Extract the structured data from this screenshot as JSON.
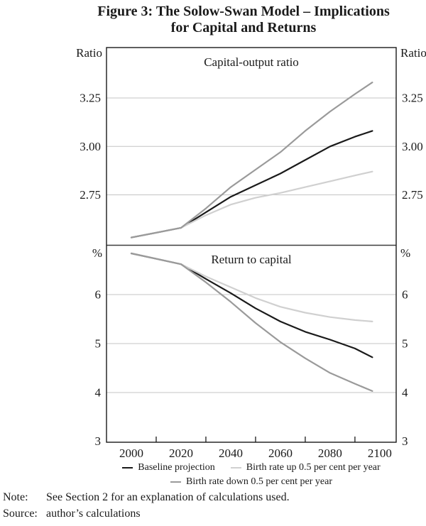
{
  "title": {
    "line1": "Figure 3: The Solow-Swan Model – Implications",
    "line2": "for Capital and Returns"
  },
  "colors": {
    "baseline": "#1a1a1a",
    "up": "#d0d0d0",
    "down": "#9a9a9a",
    "gridline": "#c4c4c4",
    "axis": "#1a1a1a",
    "divider": "#3d3d3d"
  },
  "x_axis": {
    "xlim": [
      1990,
      2106.6
    ],
    "label_years": [
      2000,
      2020,
      2040,
      2060,
      2080,
      2100
    ],
    "tick_labels": [
      "2000",
      "2020",
      "2040",
      "2060",
      "2080",
      "2100"
    ],
    "minor_tick_years": [
      2010,
      2030,
      2050,
      2070,
      2090
    ]
  },
  "chart_data": [
    {
      "type": "line",
      "title": "Capital-output ratio",
      "ylabel_left": "Ratio",
      "ylabel_right": "Ratio",
      "ylim": [
        2.49,
        3.51
      ],
      "yticks": [
        3.25,
        3.0,
        2.75
      ],
      "ytick_labels": [
        "3.25",
        "3.00",
        "2.75"
      ],
      "baseline_tick": null,
      "x": [
        2000,
        2010,
        2020,
        2030,
        2040,
        2050,
        2060,
        2070,
        2080,
        2090,
        2097
      ],
      "series": [
        {
          "key": "baseline",
          "name": "Baseline projection",
          "values": [
            2.53,
            2.555,
            2.58,
            2.66,
            2.74,
            2.8,
            2.86,
            2.93,
            3.0,
            3.05,
            3.08
          ]
        },
        {
          "key": "up",
          "name": "Birth rate up 0.5 per cent per year",
          "values": [
            2.53,
            2.555,
            2.58,
            2.645,
            2.7,
            2.735,
            2.76,
            2.79,
            2.82,
            2.85,
            2.87
          ]
        },
        {
          "key": "down",
          "name": "Birth rate down 0.5 per cent per year",
          "values": [
            2.53,
            2.555,
            2.58,
            2.68,
            2.79,
            2.88,
            2.97,
            3.08,
            3.18,
            3.27,
            3.33
          ]
        }
      ]
    },
    {
      "type": "line",
      "title": "Return to capital",
      "ylabel_left": "%",
      "ylabel_right": "%",
      "ylim": [
        3.0,
        7.007
      ],
      "yticks": [
        6,
        5,
        4
      ],
      "ytick_labels": [
        "6",
        "5",
        "4"
      ],
      "baseline_tick": "3",
      "x": [
        2000,
        2010,
        2020,
        2030,
        2040,
        2050,
        2060,
        2070,
        2080,
        2090,
        2097
      ],
      "series": [
        {
          "key": "baseline",
          "name": "Baseline projection",
          "values": [
            6.84,
            6.73,
            6.62,
            6.32,
            6.03,
            5.72,
            5.45,
            5.24,
            5.08,
            4.9,
            4.72
          ]
        },
        {
          "key": "up",
          "name": "Birth rate up 0.5 per cent per year",
          "values": [
            6.84,
            6.73,
            6.62,
            6.37,
            6.15,
            5.93,
            5.75,
            5.63,
            5.54,
            5.48,
            5.45
          ]
        },
        {
          "key": "down",
          "name": "Birth rate down 0.5 per cent per year",
          "values": [
            6.84,
            6.73,
            6.62,
            6.25,
            5.85,
            5.42,
            5.03,
            4.7,
            4.4,
            4.18,
            4.03
          ]
        }
      ]
    }
  ],
  "legend": {
    "items": [
      {
        "key": "baseline",
        "label": "Baseline projection"
      },
      {
        "key": "up",
        "label": "Birth rate up 0.5 per cent per year"
      },
      {
        "key": "down",
        "label": "Birth rate down 0.5 per cent per year"
      }
    ]
  },
  "notes": {
    "note_label": "Note:",
    "note_text": "See Section 2 for an explanation of calculations used.",
    "source_label": "Source:",
    "source_text": "author’s calculations"
  }
}
